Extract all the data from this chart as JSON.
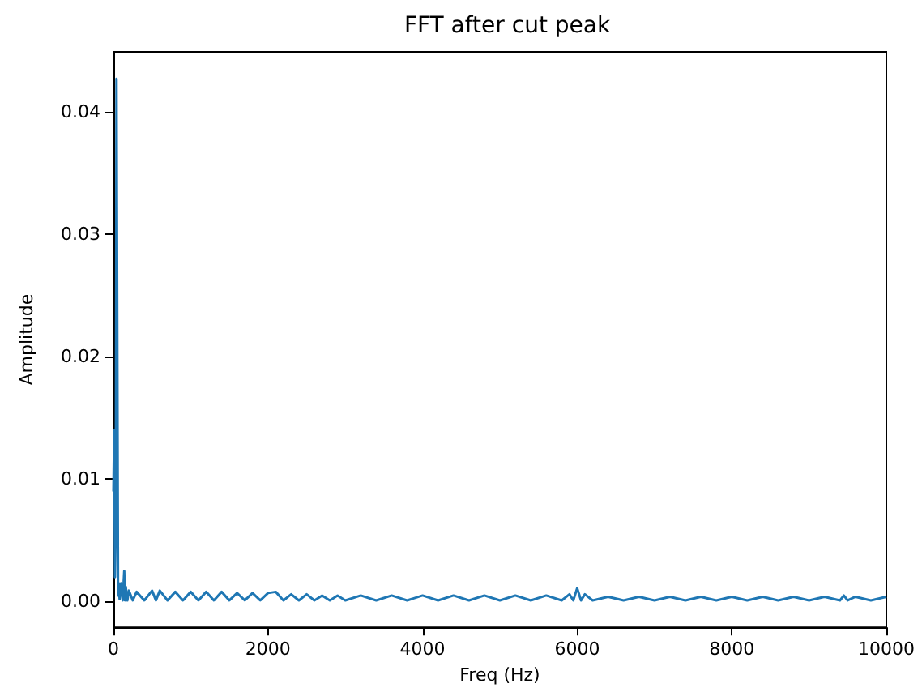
{
  "chart_data": {
    "type": "line",
    "title": "FFT after cut peak",
    "xlabel": "Freq (Hz)",
    "ylabel": "Amplitude",
    "x": [
      0,
      10,
      20,
      30,
      40,
      50,
      60,
      70,
      80,
      100,
      120,
      140,
      150,
      160,
      180,
      200,
      250,
      300,
      400,
      500,
      550,
      600,
      700,
      800,
      900,
      1000,
      1100,
      1200,
      1300,
      1400,
      1500,
      1600,
      1700,
      1800,
      1900,
      2000,
      2100,
      2200,
      2300,
      2400,
      2500,
      2600,
      2700,
      2800,
      2900,
      3000,
      3200,
      3400,
      3600,
      3800,
      4000,
      4200,
      4400,
      4600,
      4800,
      5000,
      5200,
      5400,
      5600,
      5800,
      5900,
      5950,
      6000,
      6050,
      6100,
      6200,
      6400,
      6600,
      6800,
      7000,
      7200,
      7400,
      7600,
      7800,
      8000,
      8200,
      8400,
      8600,
      8800,
      9000,
      9200,
      9400,
      9450,
      9500,
      9600,
      9800,
      10000
    ],
    "series": [
      {
        "color": "#1f77b4",
        "values": [
          0.009,
          0.014,
          0.002,
          0.006,
          0.0427,
          0.0427,
          0.0005,
          0.0015,
          0.0002,
          0.0015,
          0.0001,
          0.0025,
          0.0001,
          0.0012,
          0.0001,
          0.0009,
          0.0001,
          0.0008,
          0.0001,
          0.0009,
          0.0001,
          0.0009,
          0.0001,
          0.0008,
          0.0001,
          0.0008,
          0.0001,
          0.0008,
          0.0001,
          0.0008,
          0.0001,
          0.0007,
          0.0001,
          0.0007,
          0.0001,
          0.0007,
          0.0008,
          0.0001,
          0.0006,
          0.0001,
          0.0006,
          0.0001,
          0.0005,
          0.0001,
          0.0005,
          0.0001,
          0.0005,
          0.0001,
          0.0005,
          0.0001,
          0.0005,
          0.0001,
          0.0005,
          0.0001,
          0.0005,
          0.0001,
          0.0005,
          0.0001,
          0.0005,
          0.0001,
          0.0006,
          0.0001,
          0.0011,
          0.0001,
          0.0006,
          0.0001,
          0.0004,
          0.0001,
          0.0004,
          0.0001,
          0.0004,
          0.0001,
          0.0004,
          0.0001,
          0.0004,
          0.0001,
          0.0004,
          0.0001,
          0.0004,
          0.0001,
          0.0004,
          0.0001,
          0.0005,
          0.0001,
          0.0004,
          0.0001,
          0.0004
        ]
      }
    ],
    "xlim": [
      0,
      10000
    ],
    "xticks": [
      0,
      2000,
      4000,
      6000,
      8000,
      10000
    ],
    "ylim": [
      -0.0021,
      0.0449
    ],
    "yticks": [
      {
        "value": 0,
        "label": "0.00"
      },
      {
        "value": 0.01,
        "label": "0.01"
      },
      {
        "value": 0.02,
        "label": "0.02"
      },
      {
        "value": 0.03,
        "label": "0.03"
      },
      {
        "value": 0.04,
        "label": "0.04"
      }
    ],
    "grid": false,
    "marker": "none",
    "line_style": "solid"
  }
}
